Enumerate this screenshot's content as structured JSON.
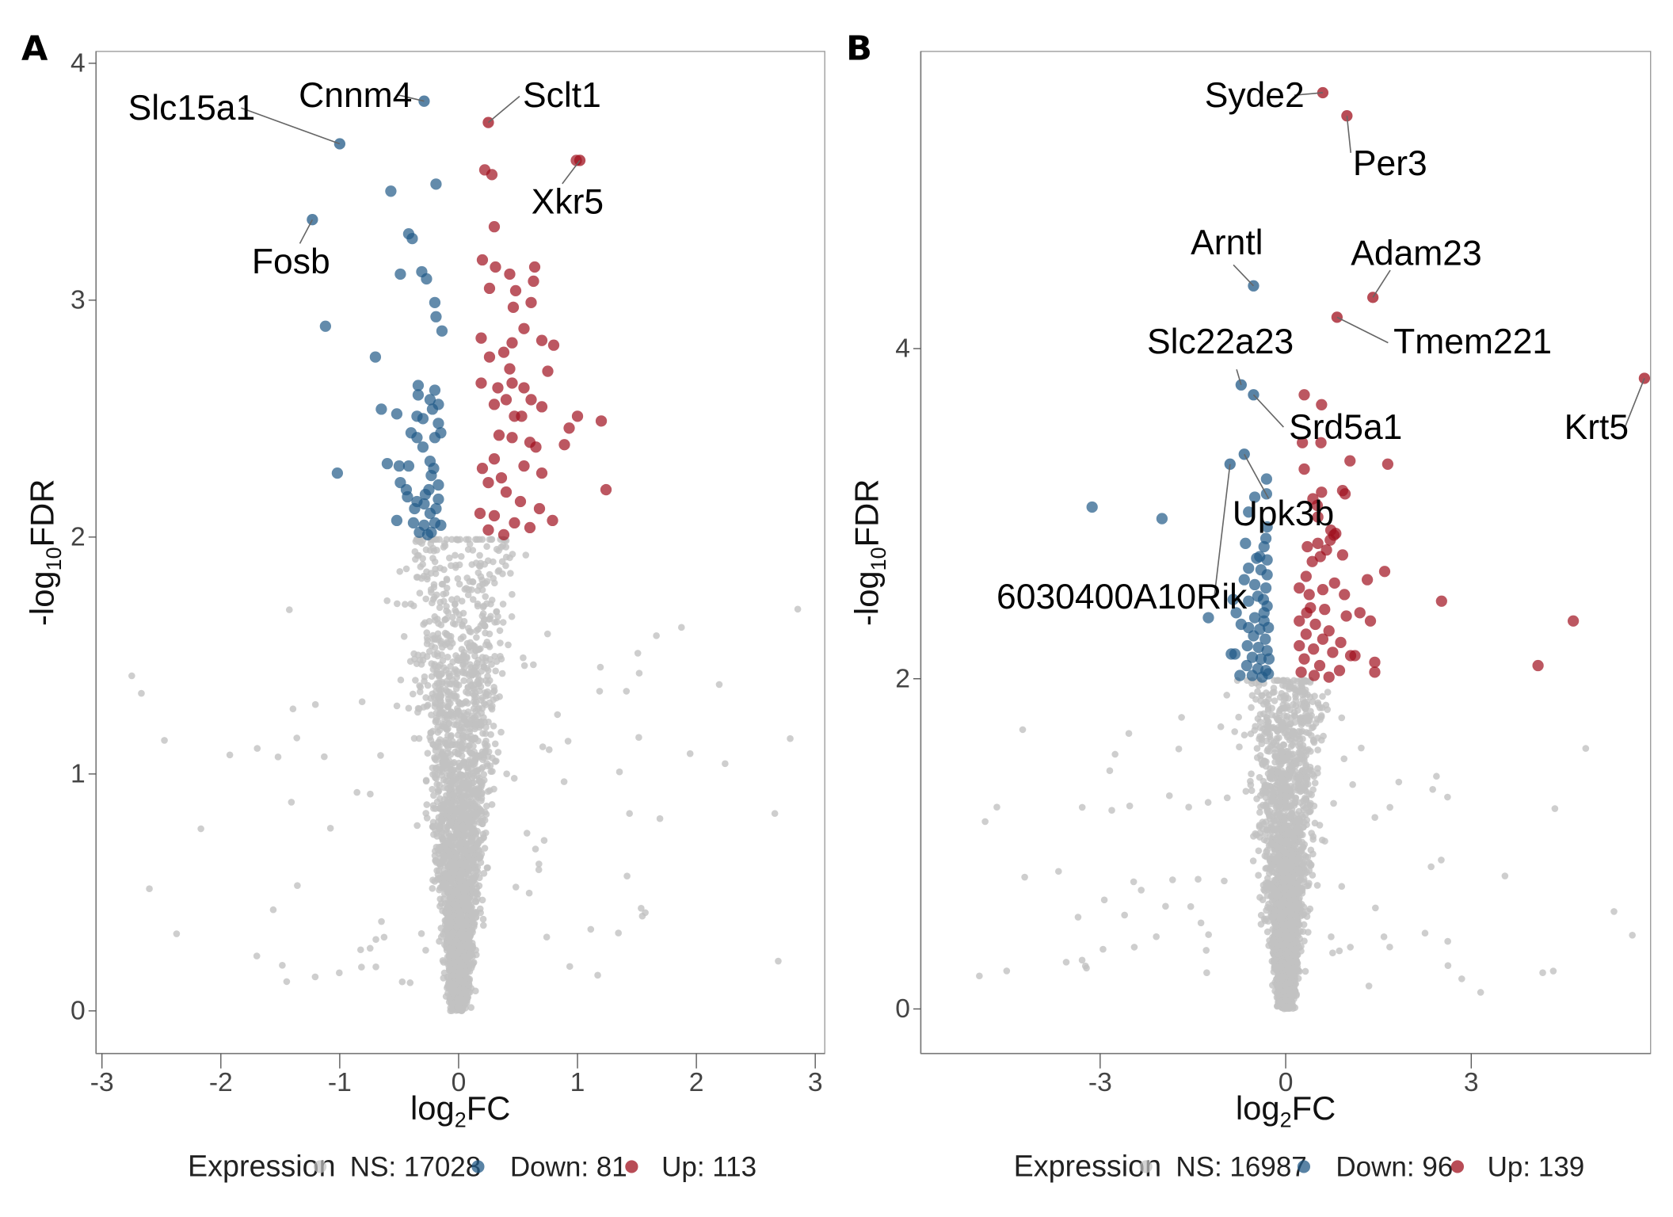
{
  "figure": {
    "description": "Two volcano plots of differential expression",
    "colors": {
      "NS": "#c2c2c2",
      "Down": "#215a87",
      "Up": "#a0101e"
    }
  },
  "chart_data": [
    {
      "type": "scatter",
      "panel_label": "A",
      "title": "",
      "xlabel": "log2FC",
      "ylabel": "-log10FDR",
      "xlim": [
        -3.05,
        3.08
      ],
      "ylim": [
        -0.18,
        4.05
      ],
      "xticks": [
        -3,
        -2,
        -1,
        0,
        1,
        2,
        3
      ],
      "yticks": [
        0,
        1,
        2,
        3,
        4
      ],
      "grid": false,
      "legend": {
        "title": "Expression",
        "position": "bottom",
        "entries": [
          {
            "key": "NS",
            "label": "NS: 17028",
            "count": 17028
          },
          {
            "key": "Down",
            "label": "Down: 81",
            "count": 81
          },
          {
            "key": "Up",
            "label": "Up: 113",
            "count": 113
          }
        ]
      },
      "significance_threshold_y": 2,
      "labeled_genes": [
        {
          "gene": "Slc15a1",
          "x": -1.0,
          "y": 3.66,
          "group": "Down"
        },
        {
          "gene": "Cnnm4",
          "x": -0.29,
          "y": 3.84,
          "group": "Down"
        },
        {
          "gene": "Sclt1",
          "x": 0.25,
          "y": 3.75,
          "group": "Up"
        },
        {
          "gene": "Xkr5",
          "x": 1.02,
          "y": 3.59,
          "group": "Up"
        },
        {
          "gene": "Fosb",
          "x": -1.23,
          "y": 3.34,
          "group": "Down"
        }
      ],
      "down_points": [
        [
          -0.57,
          3.46
        ],
        [
          -0.19,
          3.49
        ],
        [
          -0.39,
          3.26
        ],
        [
          -0.42,
          3.28
        ],
        [
          -0.49,
          3.11
        ],
        [
          -0.31,
          3.12
        ],
        [
          -0.27,
          3.09
        ],
        [
          -1.12,
          2.89
        ],
        [
          -0.2,
          2.99
        ],
        [
          -0.19,
          2.93
        ],
        [
          -0.14,
          2.87
        ],
        [
          -0.7,
          2.76
        ],
        [
          -0.34,
          2.64
        ],
        [
          -0.34,
          2.6
        ],
        [
          -0.2,
          2.62
        ],
        [
          -0.24,
          2.58
        ],
        [
          -0.22,
          2.54
        ],
        [
          -0.3,
          2.5
        ],
        [
          -0.17,
          2.56
        ],
        [
          -0.65,
          2.54
        ],
        [
          -0.52,
          2.52
        ],
        [
          -0.35,
          2.51
        ],
        [
          -0.17,
          2.48
        ],
        [
          -0.4,
          2.44
        ],
        [
          -0.35,
          2.42
        ],
        [
          -0.2,
          2.42
        ],
        [
          -0.3,
          2.38
        ],
        [
          -0.15,
          2.44
        ],
        [
          -1.02,
          2.27
        ],
        [
          -0.6,
          2.31
        ],
        [
          -0.5,
          2.3
        ],
        [
          -0.42,
          2.3
        ],
        [
          -0.24,
          2.32
        ],
        [
          -0.21,
          2.29
        ],
        [
          -0.23,
          2.26
        ],
        [
          -0.49,
          2.23
        ],
        [
          -0.44,
          2.2
        ],
        [
          -0.35,
          2.15
        ],
        [
          -0.28,
          2.18
        ],
        [
          -0.25,
          2.2
        ],
        [
          -0.17,
          2.22
        ],
        [
          -0.17,
          2.16
        ],
        [
          -0.29,
          2.14
        ],
        [
          -0.37,
          2.12
        ],
        [
          -0.24,
          2.1
        ],
        [
          -0.52,
          2.07
        ],
        [
          -0.38,
          2.06
        ],
        [
          -0.29,
          2.05
        ],
        [
          -0.23,
          2.02
        ],
        [
          -0.2,
          2.06
        ],
        [
          -0.15,
          2.05
        ],
        [
          -0.33,
          2.02
        ],
        [
          -0.26,
          2.01
        ],
        [
          -0.19,
          2.12
        ],
        [
          -0.43,
          2.17
        ]
      ],
      "up_points": [
        [
          0.22,
          3.55
        ],
        [
          0.28,
          3.53
        ],
        [
          0.99,
          3.59
        ],
        [
          0.3,
          3.31
        ],
        [
          0.2,
          3.17
        ],
        [
          0.31,
          3.14
        ],
        [
          0.64,
          3.14
        ],
        [
          0.63,
          3.08
        ],
        [
          0.43,
          3.11
        ],
        [
          0.48,
          3.04
        ],
        [
          0.26,
          3.05
        ],
        [
          0.46,
          2.97
        ],
        [
          0.61,
          2.99
        ],
        [
          0.55,
          2.88
        ],
        [
          0.45,
          2.82
        ],
        [
          0.19,
          2.84
        ],
        [
          0.7,
          2.83
        ],
        [
          0.8,
          2.81
        ],
        [
          0.38,
          2.78
        ],
        [
          0.26,
          2.76
        ],
        [
          0.43,
          2.71
        ],
        [
          0.75,
          2.7
        ],
        [
          0.45,
          2.65
        ],
        [
          0.19,
          2.65
        ],
        [
          0.33,
          2.63
        ],
        [
          0.55,
          2.63
        ],
        [
          0.61,
          2.58
        ],
        [
          0.4,
          2.58
        ],
        [
          0.3,
          2.56
        ],
        [
          0.7,
          2.55
        ],
        [
          0.47,
          2.51
        ],
        [
          0.53,
          2.51
        ],
        [
          1.0,
          2.51
        ],
        [
          0.93,
          2.46
        ],
        [
          1.2,
          2.49
        ],
        [
          0.34,
          2.43
        ],
        [
          0.45,
          2.42
        ],
        [
          0.6,
          2.4
        ],
        [
          0.65,
          2.38
        ],
        [
          0.89,
          2.39
        ],
        [
          0.3,
          2.33
        ],
        [
          0.55,
          2.3
        ],
        [
          0.7,
          2.27
        ],
        [
          1.24,
          2.2
        ],
        [
          0.25,
          2.23
        ],
        [
          0.4,
          2.19
        ],
        [
          0.52,
          2.15
        ],
        [
          0.68,
          2.12
        ],
        [
          0.18,
          2.1
        ],
        [
          0.3,
          2.09
        ],
        [
          0.47,
          2.06
        ],
        [
          0.6,
          2.04
        ],
        [
          0.25,
          2.03
        ],
        [
          0.38,
          2.01
        ],
        [
          0.79,
          2.07
        ],
        [
          0.2,
          2.29
        ],
        [
          0.36,
          2.25
        ]
      ],
      "ns_cloud": {
        "count_rendered": 2600,
        "seed": 11,
        "spread": 0.42,
        "outlier_frac": 0.04
      }
    },
    {
      "type": "scatter",
      "panel_label": "B",
      "title": "",
      "xlabel": "log2FC",
      "ylabel": "-log10FDR",
      "xlim": [
        -5.9,
        5.9
      ],
      "ylim": [
        -0.27,
        5.8
      ],
      "xticks": [
        -3,
        0,
        3
      ],
      "yticks": [
        0,
        2,
        4
      ],
      "grid": false,
      "legend": {
        "title": "Expression",
        "position": "bottom",
        "entries": [
          {
            "key": "NS",
            "label": "NS: 16987",
            "count": 16987
          },
          {
            "key": "Down",
            "label": "Down: 96",
            "count": 96
          },
          {
            "key": "Up",
            "label": "Up: 139",
            "count": 139
          }
        ]
      },
      "significance_threshold_y": 2,
      "labeled_genes": [
        {
          "gene": "Syde2",
          "x": 0.6,
          "y": 5.55,
          "group": "Up"
        },
        {
          "gene": "Per3",
          "x": 0.99,
          "y": 5.41,
          "group": "Up"
        },
        {
          "gene": "Arntl",
          "x": -0.52,
          "y": 4.38,
          "group": "Down"
        },
        {
          "gene": "Adam23",
          "x": 1.41,
          "y": 4.31,
          "group": "Up"
        },
        {
          "gene": "Tmem221",
          "x": 0.83,
          "y": 4.19,
          "group": "Up"
        },
        {
          "gene": "Slc22a23",
          "x": -0.72,
          "y": 3.78,
          "group": "Down"
        },
        {
          "gene": "Srd5a1",
          "x": -0.52,
          "y": 3.72,
          "group": "Down"
        },
        {
          "gene": "Krt5",
          "x": 5.8,
          "y": 3.82,
          "group": "Up"
        },
        {
          "gene": "Upk3b",
          "x": -0.67,
          "y": 3.36,
          "group": "Down"
        },
        {
          "gene": "6030400A10Rik",
          "x": -0.9,
          "y": 3.3,
          "group": "Down"
        }
      ],
      "down_points": [
        [
          -3.13,
          3.04
        ],
        [
          -2.0,
          2.97
        ],
        [
          -0.31,
          3.21
        ],
        [
          -0.31,
          3.12
        ],
        [
          -0.5,
          3.1
        ],
        [
          -0.6,
          3.01
        ],
        [
          -0.3,
          2.92
        ],
        [
          -0.32,
          2.85
        ],
        [
          -0.35,
          2.8
        ],
        [
          -0.65,
          2.82
        ],
        [
          -0.47,
          2.73
        ],
        [
          -0.42,
          2.74
        ],
        [
          -0.3,
          2.72
        ],
        [
          -0.6,
          2.67
        ],
        [
          -0.4,
          2.66
        ],
        [
          -0.3,
          2.63
        ],
        [
          -0.67,
          2.6
        ],
        [
          -0.5,
          2.57
        ],
        [
          -0.32,
          2.55
        ],
        [
          -0.45,
          2.5
        ],
        [
          -0.85,
          2.48
        ],
        [
          -0.6,
          2.47
        ],
        [
          -0.36,
          2.48
        ],
        [
          -0.3,
          2.44
        ],
        [
          -0.8,
          2.4
        ],
        [
          -0.5,
          2.37
        ],
        [
          -0.35,
          2.35
        ],
        [
          -1.25,
          2.37
        ],
        [
          -0.72,
          2.33
        ],
        [
          -0.42,
          2.3
        ],
        [
          -0.28,
          2.31
        ],
        [
          -0.52,
          2.26
        ],
        [
          -0.33,
          2.24
        ],
        [
          -0.62,
          2.2
        ],
        [
          -0.44,
          2.19
        ],
        [
          -0.3,
          2.17
        ],
        [
          -0.82,
          2.15
        ],
        [
          -0.54,
          2.13
        ],
        [
          -0.4,
          2.12
        ],
        [
          -0.27,
          2.12
        ],
        [
          -0.63,
          2.08
        ],
        [
          -0.45,
          2.06
        ],
        [
          -0.32,
          2.05
        ],
        [
          -0.74,
          2.02
        ],
        [
          -0.54,
          2.02
        ],
        [
          -0.38,
          2.01
        ],
        [
          -0.28,
          2.03
        ],
        [
          -0.88,
          2.15
        ],
        [
          -0.6,
          2.31
        ],
        [
          -0.35,
          2.4
        ]
      ],
      "up_points": [
        [
          0.3,
          3.72
        ],
        [
          0.58,
          3.66
        ],
        [
          0.27,
          3.43
        ],
        [
          0.57,
          3.43
        ],
        [
          1.04,
          3.32
        ],
        [
          1.65,
          3.3
        ],
        [
          0.3,
          3.27
        ],
        [
          0.92,
          3.14
        ],
        [
          0.96,
          3.12
        ],
        [
          0.58,
          3.13
        ],
        [
          0.44,
          3.09
        ],
        [
          0.51,
          3.05
        ],
        [
          0.52,
          2.98
        ],
        [
          0.73,
          2.9
        ],
        [
          0.78,
          2.87
        ],
        [
          0.81,
          2.88
        ],
        [
          0.72,
          2.84
        ],
        [
          0.52,
          2.82
        ],
        [
          0.35,
          2.8
        ],
        [
          0.66,
          2.78
        ],
        [
          0.92,
          2.75
        ],
        [
          0.56,
          2.74
        ],
        [
          0.43,
          2.71
        ],
        [
          1.32,
          2.6
        ],
        [
          1.6,
          2.65
        ],
        [
          0.33,
          2.62
        ],
        [
          0.79,
          2.58
        ],
        [
          0.95,
          2.51
        ],
        [
          0.6,
          2.54
        ],
        [
          0.22,
          2.55
        ],
        [
          0.38,
          2.51
        ],
        [
          2.52,
          2.47
        ],
        [
          4.65,
          2.35
        ],
        [
          0.4,
          2.43
        ],
        [
          0.63,
          2.42
        ],
        [
          1.2,
          2.4
        ],
        [
          1.37,
          2.35
        ],
        [
          0.98,
          2.38
        ],
        [
          0.22,
          2.35
        ],
        [
          0.48,
          2.33
        ],
        [
          0.7,
          2.29
        ],
        [
          0.33,
          2.27
        ],
        [
          0.6,
          2.24
        ],
        [
          0.89,
          2.22
        ],
        [
          0.22,
          2.2
        ],
        [
          0.45,
          2.18
        ],
        [
          0.76,
          2.16
        ],
        [
          1.05,
          2.14
        ],
        [
          1.44,
          2.1
        ],
        [
          0.3,
          2.12
        ],
        [
          0.55,
          2.08
        ],
        [
          0.87,
          2.05
        ],
        [
          0.25,
          2.04
        ],
        [
          0.46,
          2.02
        ],
        [
          0.7,
          2.01
        ],
        [
          1.44,
          2.04
        ],
        [
          4.08,
          2.08
        ],
        [
          1.12,
          2.14
        ],
        [
          0.34,
          2.4
        ]
      ],
      "ns_cloud": {
        "count_rendered": 2600,
        "seed": 23,
        "spread": 0.75,
        "outlier_frac": 0.04
      }
    }
  ],
  "panels": [
    {
      "letter": "A",
      "xlabel_main": "log",
      "xlabel_sub": "2",
      "xlabel_tail": "FC",
      "ylabel_main": "-log",
      "ylabel_sub": "10",
      "ylabel_tail": "FDR"
    },
    {
      "letter": "B",
      "xlabel_main": "log",
      "xlabel_sub": "2",
      "xlabel_tail": "FC",
      "ylabel_main": "-log",
      "ylabel_sub": "10",
      "ylabel_tail": "FDR"
    }
  ]
}
